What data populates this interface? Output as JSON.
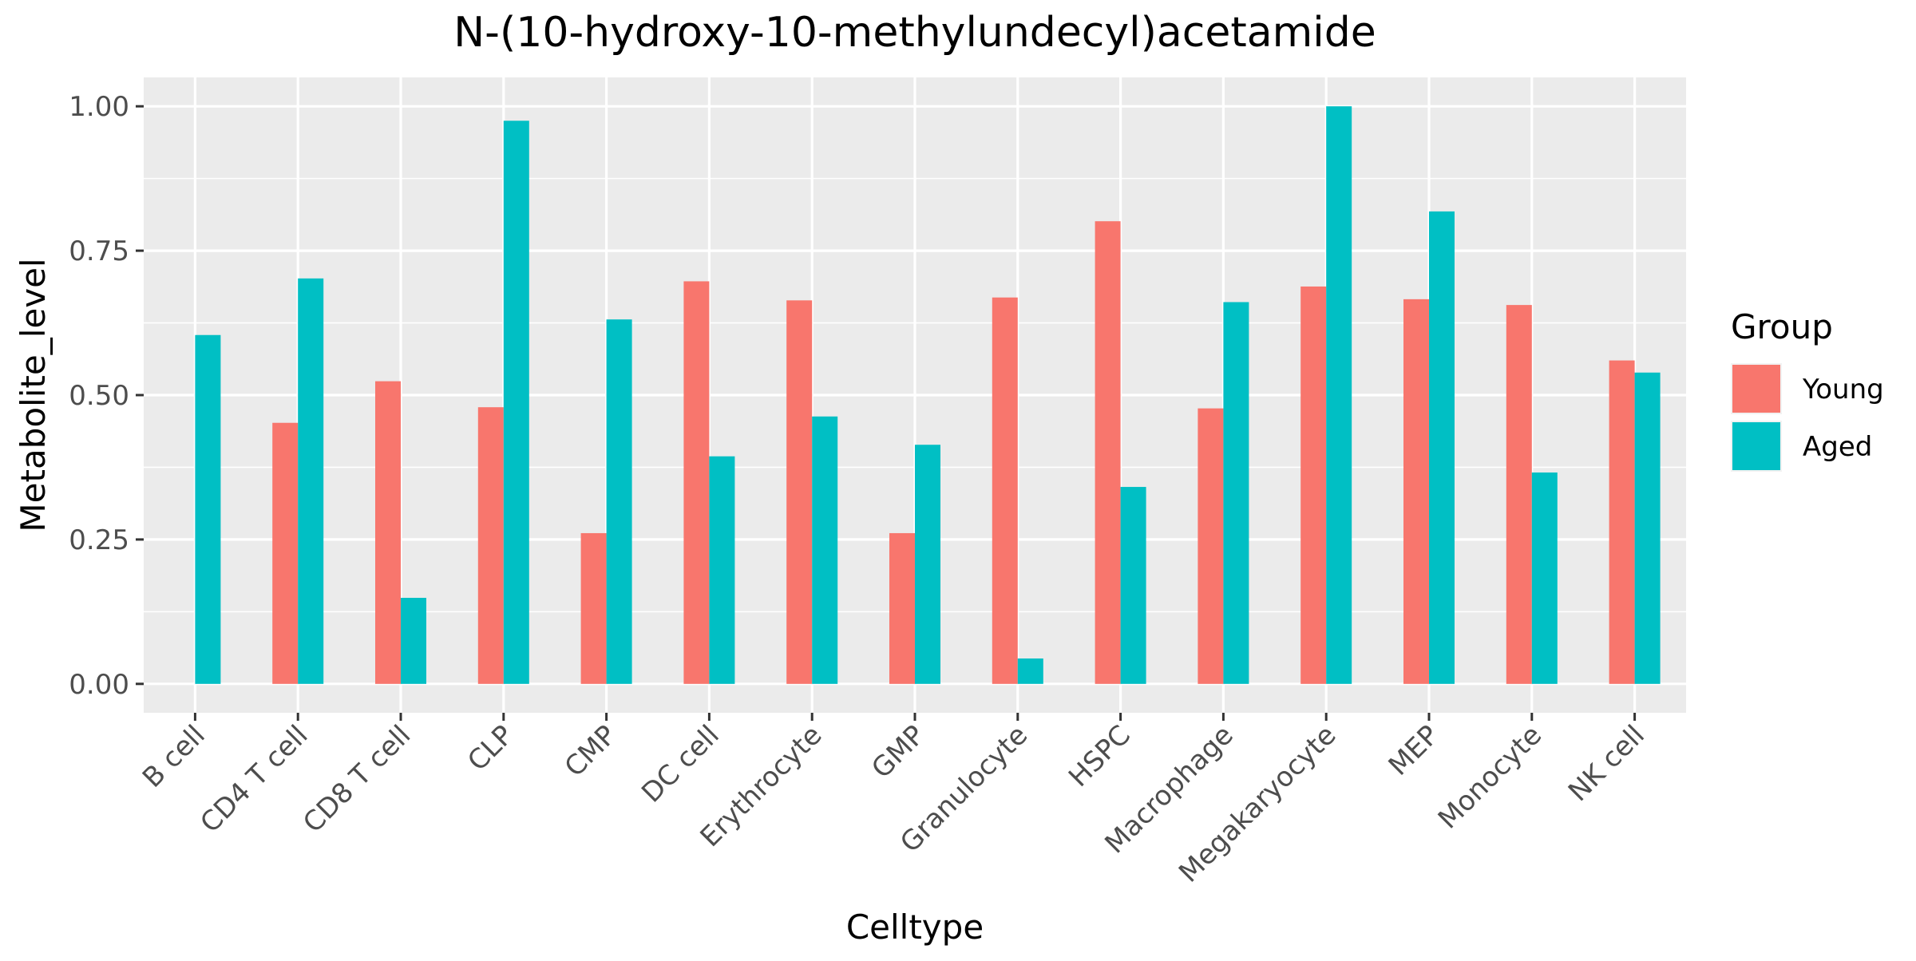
{
  "chart_data": {
    "type": "bar",
    "title": "N-(10-hydroxy-10-methylundecyl)acetamide",
    "xlabel": "Celltype",
    "ylabel": "Metabolite_level",
    "ylim": [
      -0.05,
      1.05
    ],
    "yticks": [
      0.0,
      0.25,
      0.5,
      0.75,
      1.0
    ],
    "ytick_labels": [
      "0.00",
      "0.25",
      "0.50",
      "0.75",
      "1.00"
    ],
    "categories": [
      "B cell",
      "CD4 T cell",
      "CD8 T cell",
      "CLP",
      "CMP",
      "DC cell",
      "Erythrocyte",
      "GMP",
      "Granulocyte",
      "HSPC",
      "Macrophage",
      "Megakaryocyte",
      "MEP",
      "Monocyte",
      "NK cell"
    ],
    "series": [
      {
        "name": "Young",
        "color": "#F8766D",
        "values": [
          0,
          0.452,
          0.524,
          0.479,
          0.261,
          0.697,
          0.664,
          0.261,
          0.669,
          0.801,
          0.477,
          0.688,
          0.666,
          0.656,
          0.56
        ]
      },
      {
        "name": "Aged",
        "color": "#00BFC4",
        "values": [
          0.604,
          0.702,
          0.149,
          0.975,
          0.631,
          0.394,
          0.463,
          0.414,
          0.044,
          0.341,
          0.661,
          1.0,
          0.818,
          0.366,
          0.539
        ]
      }
    ],
    "legend": {
      "title": "Group",
      "position": "right"
    },
    "grid": true,
    "panel_background": "#EBEBEB"
  }
}
